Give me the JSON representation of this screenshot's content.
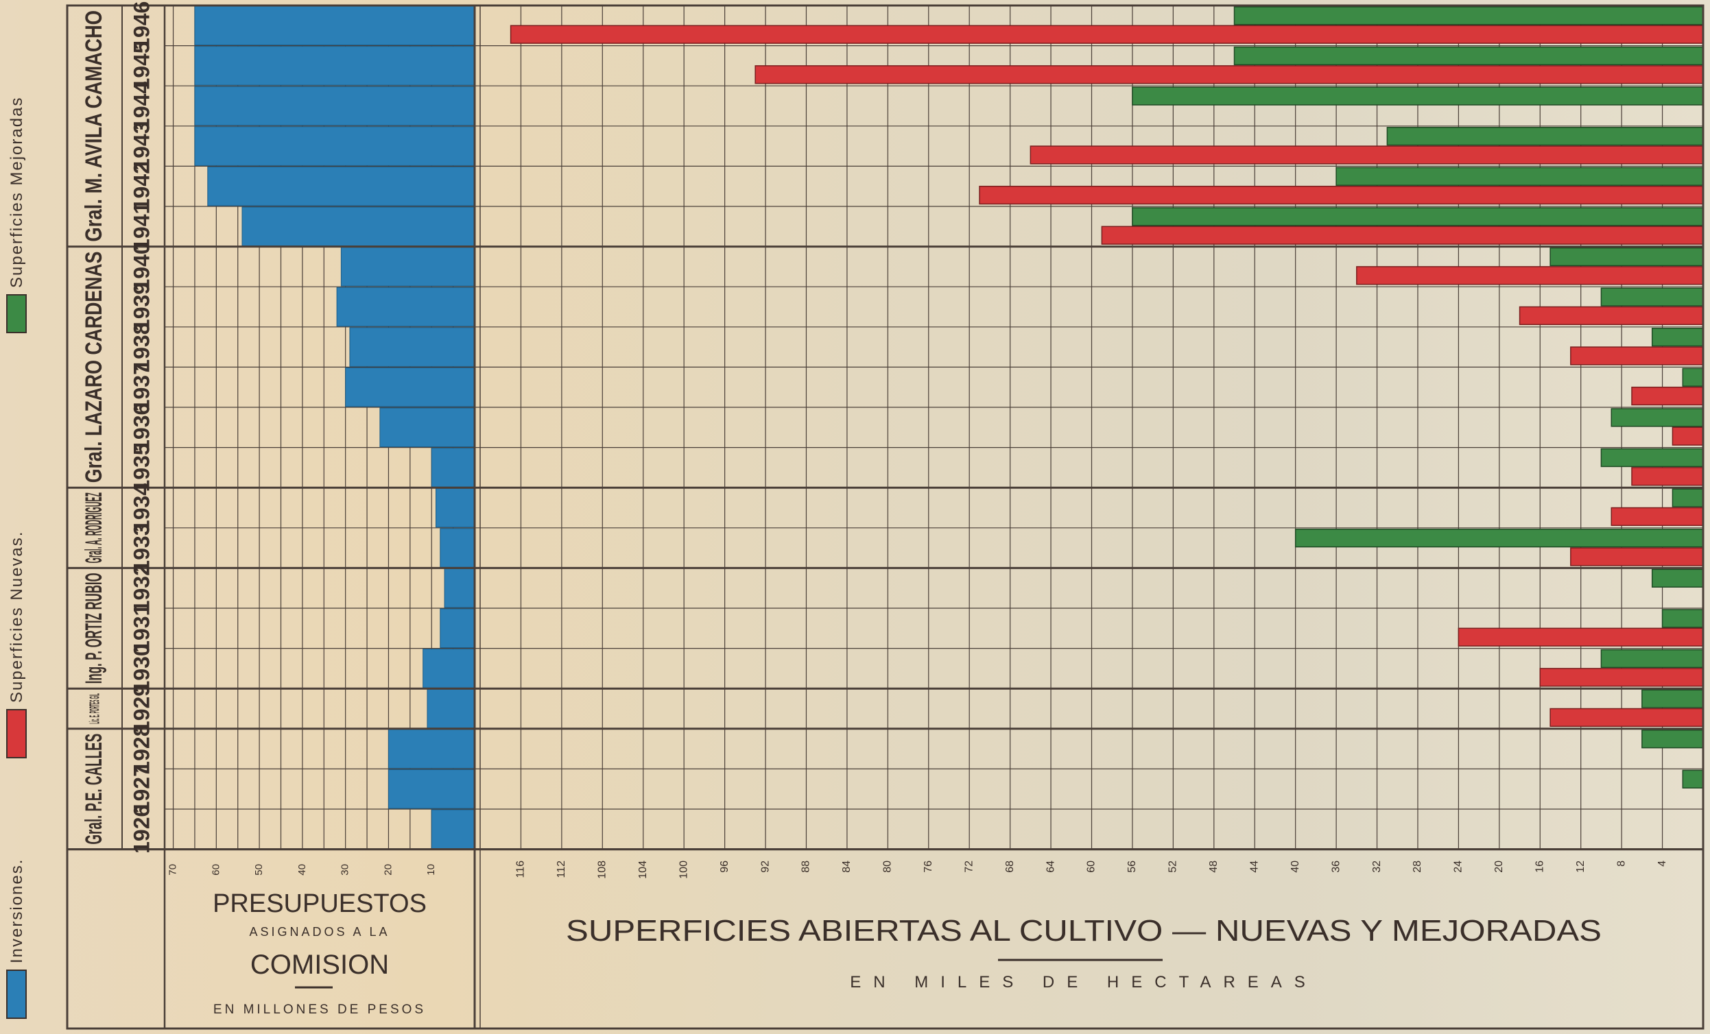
{
  "colors": {
    "inversiones": "#2b7fb6",
    "nuevas": "#d7383a",
    "mejoradas": "#3c8a45",
    "grid": "#4a3f38",
    "ink": "#3a2f2a",
    "paper": "#e9dcc2"
  },
  "legend": [
    {
      "key": "inversiones",
      "label": "Inversiones."
    },
    {
      "key": "nuevas",
      "label": "Superficies Nuevas."
    },
    {
      "key": "mejoradas",
      "label": "Superficies Mejoradas"
    }
  ],
  "presidents": [
    {
      "name": "Gral. M. AVILA CAMACHO",
      "years": [
        "1941",
        "1942",
        "1943",
        "1944",
        "1945",
        "1946"
      ]
    },
    {
      "name": "Gral. LAZARO CARDENAS",
      "years": [
        "1935",
        "1936",
        "1937",
        "1938",
        "1939",
        "1940"
      ]
    },
    {
      "name": "Gral. A. RODRIGUEZ",
      "years": [
        "1933",
        "1934"
      ]
    },
    {
      "name": "Ing. P. ORTIZ RUBIO",
      "years": [
        "1930",
        "1931",
        "1932"
      ]
    },
    {
      "name": "Lic. E. PORTES GIL",
      "years": [
        "1929"
      ]
    },
    {
      "name": "Gral. P.E. CALLES",
      "years": [
        "1926",
        "1927",
        "1928"
      ]
    }
  ],
  "left_panel": {
    "title": "PRESUPUESTOS",
    "subtitle": "ASIGNADOS A LA",
    "title2": "COMISION",
    "units": "EN MILLONES DE PESOS"
  },
  "right_panel": {
    "title": "SUPERFICIES ABIERTAS AL CULTIVO — NUEVAS Y MEJORADAS",
    "units": "EN MILES DE HECTAREAS"
  },
  "chart_data": [
    {
      "type": "bar",
      "orientation": "horizontal-leftward",
      "series": [
        {
          "name": "Inversiones",
          "key": "inversiones",
          "values": [
            65,
            65,
            65,
            65,
            62,
            54,
            31,
            32,
            29,
            30,
            22,
            10,
            9,
            8,
            7,
            8,
            12,
            11,
            20,
            20,
            10
          ]
        }
      ],
      "categories": [
        "1946",
        "1945",
        "1944",
        "1943",
        "1942",
        "1941",
        "1940",
        "1939",
        "1938",
        "1937",
        "1936",
        "1935",
        "1934",
        "1933",
        "1932",
        "1931",
        "1930",
        "1929",
        "1928",
        "1927",
        "1926"
      ],
      "xlim": [
        0,
        72
      ],
      "xticks": [
        "70",
        "60",
        "50",
        "40",
        "30",
        "20",
        "10"
      ],
      "grid": true
    },
    {
      "type": "bar",
      "orientation": "horizontal-leftward",
      "categories": [
        "1946",
        "1945",
        "1944",
        "1943",
        "1942",
        "1941",
        "1940",
        "1939",
        "1938",
        "1937",
        "1936",
        "1935",
        "1934",
        "1933",
        "1932",
        "1931",
        "1930",
        "1929",
        "1928",
        "1927",
        "1926"
      ],
      "series": [
        {
          "name": "Superficies Nuevas",
          "key": "nuevas",
          "values": [
            117,
            93,
            0,
            66,
            71,
            59,
            34,
            18,
            13,
            7,
            3,
            7,
            9,
            13,
            0,
            24,
            16,
            15,
            0,
            0,
            0
          ]
        },
        {
          "name": "Superficies Mejoradas",
          "key": "mejoradas",
          "values": [
            46,
            46,
            56,
            31,
            36,
            56,
            15,
            10,
            5,
            2,
            9,
            10,
            3,
            40,
            5,
            4,
            10,
            6,
            6,
            2,
            0
          ]
        }
      ],
      "xlim": [
        0,
        120
      ],
      "xticks": [
        "116",
        "112",
        "108",
        "104",
        "100",
        "96",
        "92",
        "88",
        "84",
        "80",
        "76",
        "72",
        "68",
        "64",
        "60",
        "56",
        "52",
        "48",
        "44",
        "40",
        "36",
        "32",
        "28",
        "24",
        "20",
        "16",
        "12",
        "8",
        "4"
      ],
      "grid": true
    }
  ]
}
